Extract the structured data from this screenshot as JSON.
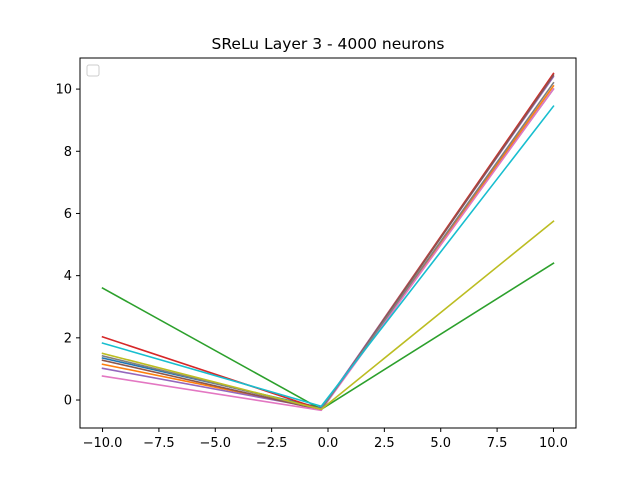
{
  "chart_data": {
    "type": "line",
    "title": "SReLu Layer 3 - 4000 neurons",
    "xlabel": "",
    "ylabel": "",
    "xlim": [
      -11.0,
      11.0
    ],
    "ylim": [
      -0.9,
      11.0
    ],
    "xticks": [
      -10.0,
      -7.5,
      -5.0,
      -2.5,
      0.0,
      2.5,
      5.0,
      7.5,
      10.0
    ],
    "xtick_labels": [
      "−10.0",
      "−7.5",
      "−5.0",
      "−2.5",
      "0.0",
      "2.5",
      "5.0",
      "7.5",
      "10.0"
    ],
    "yticks": [
      0,
      2,
      4,
      6,
      8,
      10
    ],
    "ytick_labels": [
      "0",
      "2",
      "4",
      "6",
      "8",
      "10"
    ],
    "grid": false,
    "legend": {
      "placement": "top-left",
      "entries": []
    },
    "series": [
      {
        "color": "#1f77b4",
        "x": [
          -10,
          -0.3,
          10
        ],
        "y": [
          1.35,
          -0.25,
          10.0
        ]
      },
      {
        "color": "#ff7f0e",
        "x": [
          -10,
          -0.3,
          10
        ],
        "y": [
          1.15,
          -0.28,
          10.1
        ]
      },
      {
        "color": "#2ca02c",
        "x": [
          -10,
          -0.3,
          10
        ],
        "y": [
          3.6,
          -0.3,
          4.4
        ]
      },
      {
        "color": "#d62728",
        "x": [
          -10,
          -0.3,
          10
        ],
        "y": [
          2.03,
          -0.3,
          10.5
        ]
      },
      {
        "color": "#9467bd",
        "x": [
          -10,
          -0.3,
          10
        ],
        "y": [
          1.02,
          -0.28,
          10.4
        ]
      },
      {
        "color": "#8c564b",
        "x": [
          -10,
          -0.3,
          10
        ],
        "y": [
          1.28,
          -0.32,
          10.45
        ]
      },
      {
        "color": "#e377c2",
        "x": [
          -10,
          -0.3,
          10
        ],
        "y": [
          0.77,
          -0.33,
          10.0
        ]
      },
      {
        "color": "#7f7f7f",
        "x": [
          -10,
          -0.3,
          10
        ],
        "y": [
          1.42,
          -0.3,
          10.2
        ]
      },
      {
        "color": "#bcbd22",
        "x": [
          -10,
          -0.3,
          10
        ],
        "y": [
          1.5,
          -0.3,
          5.75
        ]
      },
      {
        "color": "#17becf",
        "x": [
          -10,
          -0.3,
          10
        ],
        "y": [
          1.83,
          -0.2,
          9.45
        ]
      }
    ]
  }
}
